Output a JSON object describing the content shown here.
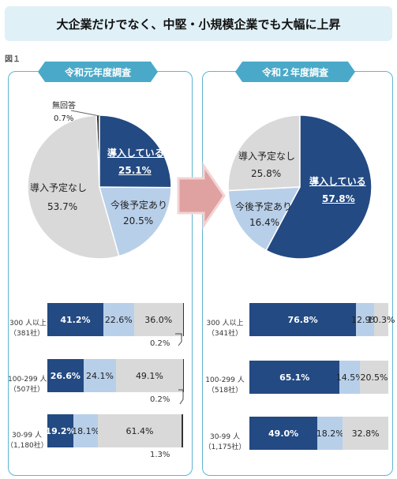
{
  "page": {
    "title": "大企業だけでなく、中堅・小規模企業でも大幅に上昇",
    "figure_label": "図１"
  },
  "colors": {
    "introduced": "#234a82",
    "planned": "#b8cfe9",
    "no_plan": "#d9d9d9",
    "no_answer": "#333333",
    "accent": "#4aa9c8"
  },
  "chart_data": [
    {
      "type": "pie",
      "title": "令和元年度調査",
      "slices": [
        {
          "label": "導入している",
          "value": 25.1,
          "value_text": "25.1%"
        },
        {
          "label": "今後予定あり",
          "value": 20.5,
          "value_text": "20.5%"
        },
        {
          "label": "導入予定なし",
          "value": 53.7,
          "value_text": "53.7%"
        },
        {
          "label": "無回答",
          "value": 0.7,
          "value_text": "0.7%"
        }
      ]
    },
    {
      "type": "pie",
      "title": "令和２年度調査",
      "slices": [
        {
          "label": "導入している",
          "value": 57.8,
          "value_text": "57.8%"
        },
        {
          "label": "今後予定あり",
          "value": 16.4,
          "value_text": "16.4%"
        },
        {
          "label": "導入予定なし",
          "value": 25.8,
          "value_text": "25.8%"
        }
      ]
    },
    {
      "type": "bar",
      "stacked": true,
      "orientation": "horizontal",
      "title": "令和元年度調査",
      "rows": [
        {
          "label": "300 人以上",
          "count": "（381社）",
          "values": [
            41.2,
            22.6,
            36.0,
            0.2
          ],
          "texts": [
            "41.2%",
            "22.6%",
            "36.0%",
            "0.2%"
          ]
        },
        {
          "label": "100-299 人",
          "count": "（507社）",
          "values": [
            26.6,
            24.1,
            49.1,
            0.2
          ],
          "texts": [
            "26.6%",
            "24.1%",
            "49.1%",
            "0.2%"
          ]
        },
        {
          "label": "30-99 人",
          "count": "（1,180社）",
          "values": [
            19.2,
            18.1,
            61.4,
            1.3
          ],
          "texts": [
            "19.2%",
            "18.1%",
            "61.4%",
            "1.3%"
          ]
        }
      ]
    },
    {
      "type": "bar",
      "stacked": true,
      "orientation": "horizontal",
      "title": "令和２年度調査",
      "rows": [
        {
          "label": "300 人以上",
          "count": "（341社）",
          "values": [
            76.8,
            12.9,
            10.3
          ],
          "texts": [
            "76.8%",
            "12.9%",
            "10.3%"
          ]
        },
        {
          "label": "100-299 人",
          "count": "（518社）",
          "values": [
            65.1,
            14.5,
            20.5
          ],
          "texts": [
            "65.1%",
            "14.5%",
            "20.5%"
          ]
        },
        {
          "label": "30-99 人",
          "count": "（1,175社）",
          "values": [
            49.0,
            18.2,
            32.8
          ],
          "texts": [
            "49.0%",
            "18.2%",
            "32.8%"
          ]
        }
      ]
    }
  ]
}
